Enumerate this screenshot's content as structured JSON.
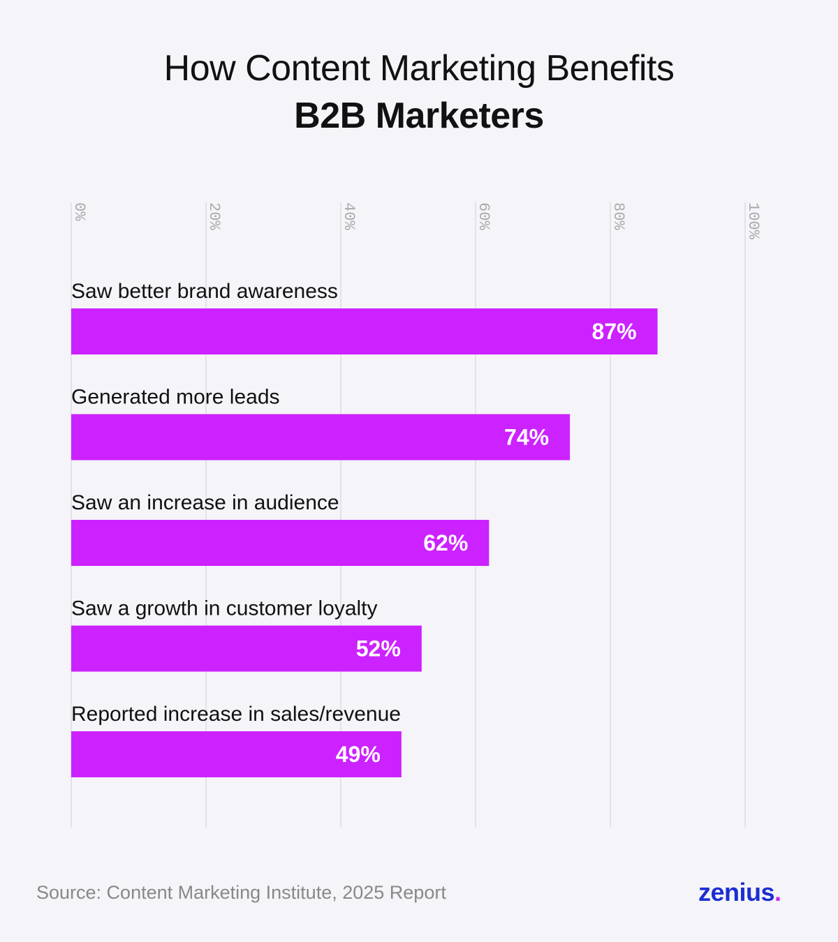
{
  "title": {
    "line1": "How Content Marketing Benefits",
    "line2": "B2B Marketers"
  },
  "chart_data": {
    "type": "bar",
    "orientation": "horizontal",
    "categories": [
      "Saw better brand awareness",
      "Generated more leads",
      "Saw an increase in audience",
      "Saw a growth in customer loyalty",
      "Reported increase in sales/revenue"
    ],
    "values": [
      87,
      74,
      62,
      52,
      49
    ],
    "value_labels": [
      "87%",
      "74%",
      "62%",
      "52%",
      "49%"
    ],
    "ticks": [
      "0%",
      "20%",
      "40%",
      "60%",
      "80%",
      "100%"
    ],
    "tick_values": [
      0,
      20,
      40,
      60,
      80,
      100
    ],
    "xlim": [
      0,
      100
    ],
    "grid": true,
    "bar_color": "#cc22ff",
    "grid_color": "#dddbe3",
    "tick_color": "#aaaaaa"
  },
  "footer": {
    "source": "Source: Content Marketing Institute, 2025 Report",
    "logo_text": "zenius",
    "logo_dot": ".",
    "logo_color": "#1b2fd1",
    "logo_dot_color": "#d020f5"
  }
}
